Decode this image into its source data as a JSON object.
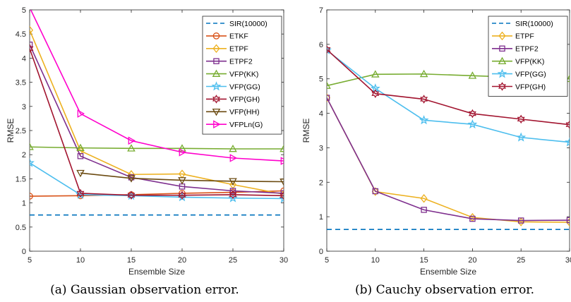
{
  "style": {
    "axis_color": "#262626",
    "series_colors": {
      "SIR(10000)": "#0072BD",
      "ETKF": "#D95319",
      "ETPF": "#EDB120",
      "ETPF2": "#7E2F8E",
      "VFP(KK)": "#77AC30",
      "VFP(GG)": "#4DBEEE",
      "VFP(GH)": "#A2142F",
      "VFP(HH)": "#6B4A10",
      "VFPLn(G)": "#FF00CC"
    }
  },
  "chart_data": [
    {
      "type": "line",
      "caption": "(a) Gaussian observation error.",
      "xlabel": "Ensemble Size",
      "ylabel": "RMSE",
      "xlim": [
        5,
        30
      ],
      "ylim": [
        0,
        5
      ],
      "xticks": [
        "5",
        "10",
        "15",
        "20",
        "25",
        "30"
      ],
      "yticks": [
        "0",
        "0.5",
        "1",
        "1.5",
        "2",
        "2.5",
        "3",
        "3.5",
        "4",
        "4.5",
        "5"
      ],
      "grid": false,
      "legend_position": "top-right",
      "x": [
        5,
        10,
        15,
        20,
        25,
        30
      ],
      "series": [
        {
          "name": "SIR(10000)",
          "marker": "none",
          "dashed": true,
          "values": [
            0.75,
            0.75,
            0.75,
            0.75,
            0.75,
            0.75
          ]
        },
        {
          "name": "ETKF",
          "marker": "circle",
          "values": [
            1.14,
            1.15,
            1.17,
            1.2,
            1.22,
            1.25
          ]
        },
        {
          "name": "ETPF",
          "marker": "diamond",
          "values": [
            4.58,
            2.08,
            1.59,
            1.6,
            1.38,
            1.18
          ]
        },
        {
          "name": "ETPF2",
          "marker": "square",
          "values": [
            4.28,
            1.97,
            1.53,
            1.34,
            1.25,
            1.2
          ]
        },
        {
          "name": "VFP(KK)",
          "marker": "triangle-up",
          "values": [
            2.16,
            2.14,
            2.13,
            2.13,
            2.12,
            2.12
          ]
        },
        {
          "name": "VFP(GG)",
          "marker": "star",
          "values": [
            1.83,
            1.17,
            1.15,
            1.12,
            1.1,
            1.09
          ]
        },
        {
          "name": "VFP(GH)",
          "marker": "hexagram",
          "values": [
            4.2,
            1.2,
            1.16,
            1.16,
            1.17,
            1.15
          ]
        },
        {
          "name": "VFP(HH)",
          "marker": "triangle-down",
          "values": [
            null,
            1.62,
            1.51,
            1.47,
            1.45,
            1.44
          ]
        },
        {
          "name": "VFPLn(G)",
          "marker": "triangle-right",
          "values": [
            5.05,
            2.85,
            2.29,
            2.05,
            1.93,
            1.87
          ]
        }
      ]
    },
    {
      "type": "line",
      "caption": "(b) Cauchy observation error.",
      "xlabel": "Ensemble Size",
      "ylabel": "RMSE",
      "xlim": [
        5,
        30
      ],
      "ylim": [
        0,
        7
      ],
      "xticks": [
        "5",
        "10",
        "15",
        "20",
        "25",
        "30"
      ],
      "yticks": [
        "0",
        "1",
        "2",
        "3",
        "4",
        "5",
        "6",
        "7"
      ],
      "grid": false,
      "legend_position": "top-right",
      "x": [
        5,
        10,
        15,
        20,
        25,
        30
      ],
      "series": [
        {
          "name": "SIR(10000)",
          "marker": "none",
          "dashed": true,
          "values": [
            0.63,
            0.63,
            0.63,
            0.63,
            0.63,
            0.63
          ]
        },
        {
          "name": "ETPF",
          "marker": "diamond",
          "values": [
            4.45,
            1.73,
            1.53,
            0.98,
            0.85,
            0.84
          ]
        },
        {
          "name": "ETPF2",
          "marker": "square",
          "values": [
            4.45,
            1.74,
            1.2,
            0.94,
            0.89,
            0.9
          ]
        },
        {
          "name": "VFP(KK)",
          "marker": "triangle-up",
          "values": [
            4.8,
            5.13,
            5.14,
            5.09,
            5.04,
            5.0
          ]
        },
        {
          "name": "VFP(GG)",
          "marker": "star",
          "values": [
            5.83,
            4.72,
            3.8,
            3.68,
            3.3,
            3.16
          ]
        },
        {
          "name": "VFP(GH)",
          "marker": "hexagram",
          "values": [
            5.85,
            4.57,
            4.41,
            3.99,
            3.83,
            3.67
          ]
        }
      ]
    }
  ]
}
